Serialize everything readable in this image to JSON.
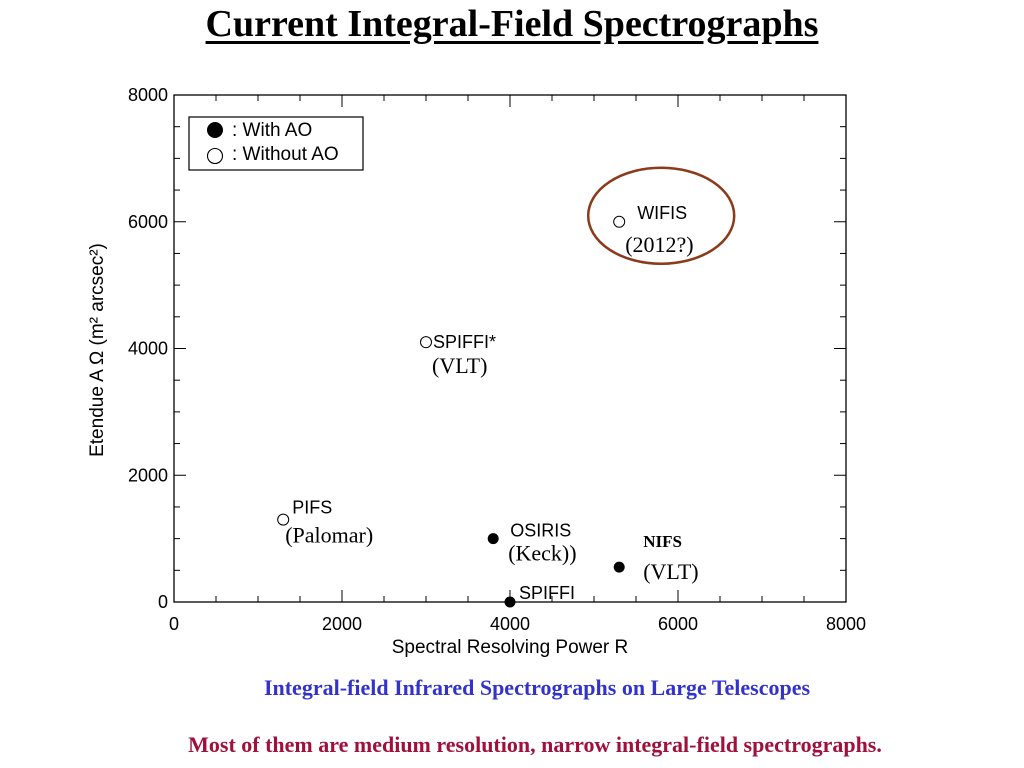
{
  "title": "Current Integral-Field Spectrographs",
  "subtitle": "Integral-field Infrared Spectrographs on Large Telescopes",
  "caption": "Most of them are medium resolution, narrow integral-field spectrographs.",
  "chart_data": {
    "type": "scatter",
    "xlabel": "Spectral Resolving Power R",
    "ylabel": "Etendue A Ω (m² arcsec²)",
    "xlim": [
      0,
      8000
    ],
    "ylim": [
      0,
      8000
    ],
    "xticks": [
      "0",
      "2000",
      "4000",
      "6000",
      "8000"
    ],
    "yticks": [
      "0",
      "2000",
      "4000",
      "6000",
      "8000"
    ],
    "grid": false,
    "legend": {
      "position": "top-left",
      "entries": [
        {
          "label": ": With AO",
          "marker": "filled"
        },
        {
          "label": ": Without AO",
          "marker": "open"
        }
      ]
    },
    "points": [
      {
        "name": "PIFS",
        "telescope": "(Palomar)",
        "x": 1300,
        "y": 1300,
        "ao": false
      },
      {
        "name": "SPIFFI*",
        "telescope": "(VLT)",
        "x": 3000,
        "y": 4100,
        "ao": false
      },
      {
        "name": "WIFIS",
        "telescope": "(2012?)",
        "x": 5300,
        "y": 6000,
        "ao": false
      },
      {
        "name": "OSIRIS",
        "telescope": "(Keck))",
        "x": 3800,
        "y": 1000,
        "ao": true
      },
      {
        "name": "NIFS",
        "telescope": "(VLT)",
        "x": 5300,
        "y": 550,
        "ao": true
      },
      {
        "name": "SPIFFI",
        "telescope": "",
        "x": 4000,
        "y": 0,
        "ao": true
      }
    ],
    "highlight": {
      "target": "WIFIS",
      "color": "#8b3a1a"
    }
  }
}
